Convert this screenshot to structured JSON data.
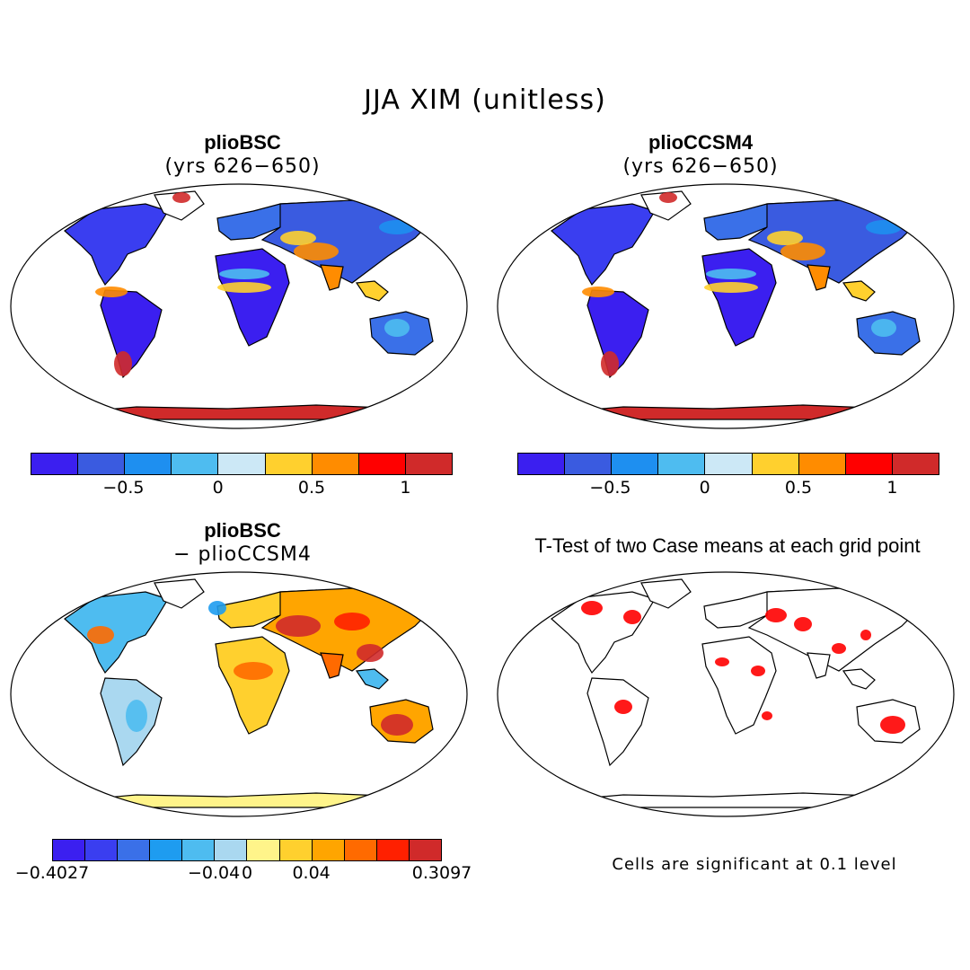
{
  "title": "JJA XIM (unitless)",
  "panels": [
    {
      "id": "a",
      "title": "plioBSC",
      "subtitle": "(yrs 626−650)"
    },
    {
      "id": "b",
      "title": "plioCCSM4",
      "subtitle": "(yrs 626−650)"
    },
    {
      "id": "c",
      "title": "plioBSC",
      "subtitle": "− plioCCSM4"
    },
    {
      "id": "d",
      "title": "T-Test of two Case means at each grid point",
      "subtitle": ""
    }
  ],
  "colorbar_main": {
    "colors": [
      "#3b1ff0",
      "#3a5be0",
      "#1e8ff0",
      "#4ebcf0",
      "#cce8f6",
      "#ffd02e",
      "#ff8c00",
      "#ff0000",
      "#d02a2a"
    ],
    "tick_labels": [
      "−0.5",
      "0",
      "0.5",
      "1"
    ]
  },
  "colorbar_diff": {
    "colors": [
      "#3b1ff0",
      "#3a3ef0",
      "#3a70e8",
      "#1e9cf0",
      "#4ebcf0",
      "#aad8f0",
      "#fff48a",
      "#ffd02e",
      "#ffa500",
      "#ff6a00",
      "#ff2000",
      "#d02a2a"
    ],
    "tick_labels": [
      "−0.4027",
      "−0.04",
      "0",
      "0.04",
      "0.3097"
    ]
  },
  "significance_note": "Cells are significant at 0.1 level"
}
